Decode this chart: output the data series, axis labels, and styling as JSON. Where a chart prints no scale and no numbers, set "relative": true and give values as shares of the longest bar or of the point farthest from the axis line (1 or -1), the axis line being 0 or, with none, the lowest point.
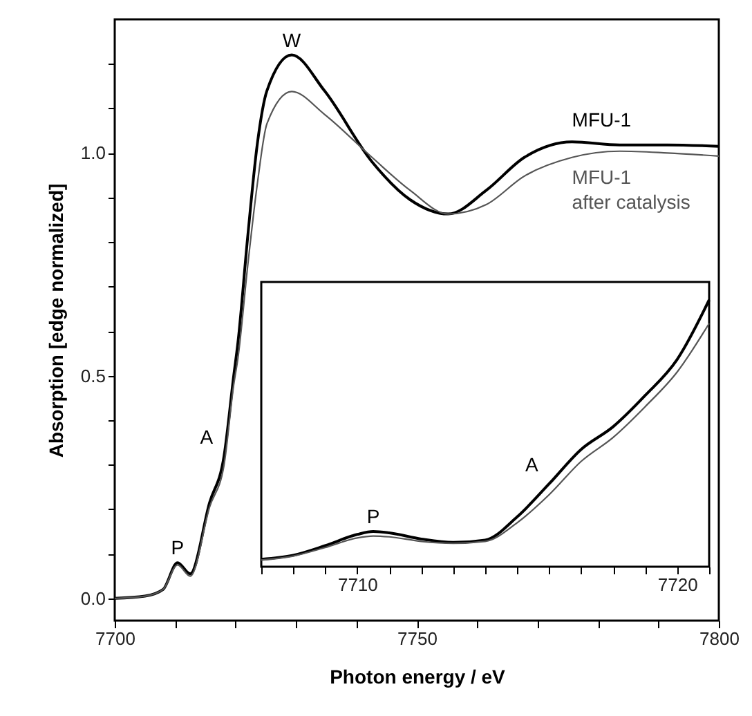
{
  "chart_data": [
    {
      "type": "line",
      "xlabel": "Photon energy / eV",
      "ylabel": "Absorption [edge normalized]",
      "x": [
        7700,
        7705,
        7708,
        7710.4,
        7712.5,
        7715.7,
        7718.1,
        7719.7,
        7720.4,
        7722,
        7723.6,
        7725.2,
        7729.3,
        7734.7,
        7742.6,
        7748.9,
        7755.2,
        7761.5,
        7767.8,
        7775.7,
        7783.6,
        7791.5,
        7800
      ],
      "series": [
        {
          "name": "MFU-1",
          "color": "#000000",
          "values": [
            0.0,
            0.005,
            0.02,
            0.08,
            0.055,
            0.215,
            0.32,
            0.5,
            0.575,
            0.81,
            1.02,
            1.14,
            1.22,
            1.14,
            0.98,
            0.895,
            0.863,
            0.916,
            0.99,
            1.025,
            1.018,
            1.018,
            1.015
          ]
        },
        {
          "name": "MFU-1\nafter catalysis",
          "color": "#555555",
          "values": [
            0.0,
            0.005,
            0.02,
            0.075,
            0.05,
            0.205,
            0.3,
            0.48,
            0.54,
            0.745,
            0.93,
            1.066,
            1.138,
            1.087,
            0.99,
            0.916,
            0.863,
            0.884,
            0.948,
            0.99,
            1.004,
            1.0,
            0.993
          ]
        }
      ],
      "xlim": [
        7700,
        7800
      ],
      "xticks": [
        7700,
        {
          "value": 7710,
          "label": null
        },
        {
          "value": 7720,
          "label": null
        },
        {
          "value": 7730,
          "label": null
        },
        {
          "value": 7740,
          "label": null
        },
        7750,
        {
          "value": 7760,
          "label": null
        },
        {
          "value": 7770,
          "label": null
        },
        {
          "value": 7780,
          "label": null
        },
        {
          "value": 7790,
          "label": null
        },
        7800
      ],
      "ylim": [
        -0.05,
        1.3
      ],
      "yticks": [
        {
          "value": 0,
          "label": "0.0"
        },
        {
          "value": 0.1,
          "label": null
        },
        {
          "value": 0.2,
          "label": null
        },
        {
          "value": 0.3,
          "label": null
        },
        {
          "value": 0.4,
          "label": null
        },
        {
          "value": 0.5,
          "label": "0.5"
        },
        {
          "value": 0.6,
          "label": null
        },
        {
          "value": 0.7,
          "label": null
        },
        {
          "value": 0.8,
          "label": null
        },
        {
          "value": 0.9,
          "label": null
        },
        {
          "value": 1,
          "label": "1.0"
        },
        {
          "value": 1.1,
          "label": null
        },
        {
          "value": 1.2,
          "label": null
        }
      ],
      "annotations": [
        {
          "text": "W",
          "x": 7729.3,
          "y": 1.22
        },
        {
          "text": "P",
          "x": 7710.4,
          "y": 0.08
        },
        {
          "text": "A",
          "x": 7718.1,
          "y": 0.32
        }
      ]
    },
    {
      "type": "line",
      "relative": true,
      "tick_labels": "x",
      "x": [
        7707,
        7708,
        7709,
        7710,
        7710.5,
        7711,
        7712,
        7713,
        7714,
        7715,
        7716,
        7717,
        7718,
        7719,
        7720,
        7721
      ],
      "series": [
        {
          "color": "#000000",
          "values": [
            0.028,
            0.043,
            0.079,
            0.121,
            0.132,
            0.127,
            0.104,
            0.091,
            0.1,
            0.187,
            0.311,
            0.44,
            0.525,
            0.642,
            0.777,
            1.0
          ]
        },
        {
          "color": "#555555",
          "values": [
            0.025,
            0.04,
            0.072,
            0.108,
            0.115,
            0.112,
            0.095,
            0.088,
            0.095,
            0.165,
            0.27,
            0.395,
            0.485,
            0.6,
            0.73,
            0.912
          ]
        }
      ],
      "xlim": [
        7707,
        7721
      ],
      "xticks": [
        {
          "value": 7707,
          "label": null
        },
        {
          "value": 7708,
          "label": null
        },
        {
          "value": 7709,
          "label": null
        },
        7710,
        {
          "value": 7711,
          "label": null
        },
        {
          "value": 7712,
          "label": null
        },
        {
          "value": 7713,
          "label": null
        },
        {
          "value": 7714,
          "label": null
        },
        {
          "value": 7715,
          "label": null
        },
        {
          "value": 7716,
          "label": null
        },
        {
          "value": 7717,
          "label": null
        },
        {
          "value": 7718,
          "label": null
        },
        {
          "value": 7719,
          "label": null
        },
        7720,
        {
          "value": 7721,
          "label": null
        }
      ],
      "annotations": [
        {
          "text": "P",
          "x": 7710.5,
          "y": 0.132
        },
        {
          "text": "A",
          "x": 7716,
          "y": 0.311
        }
      ]
    }
  ]
}
